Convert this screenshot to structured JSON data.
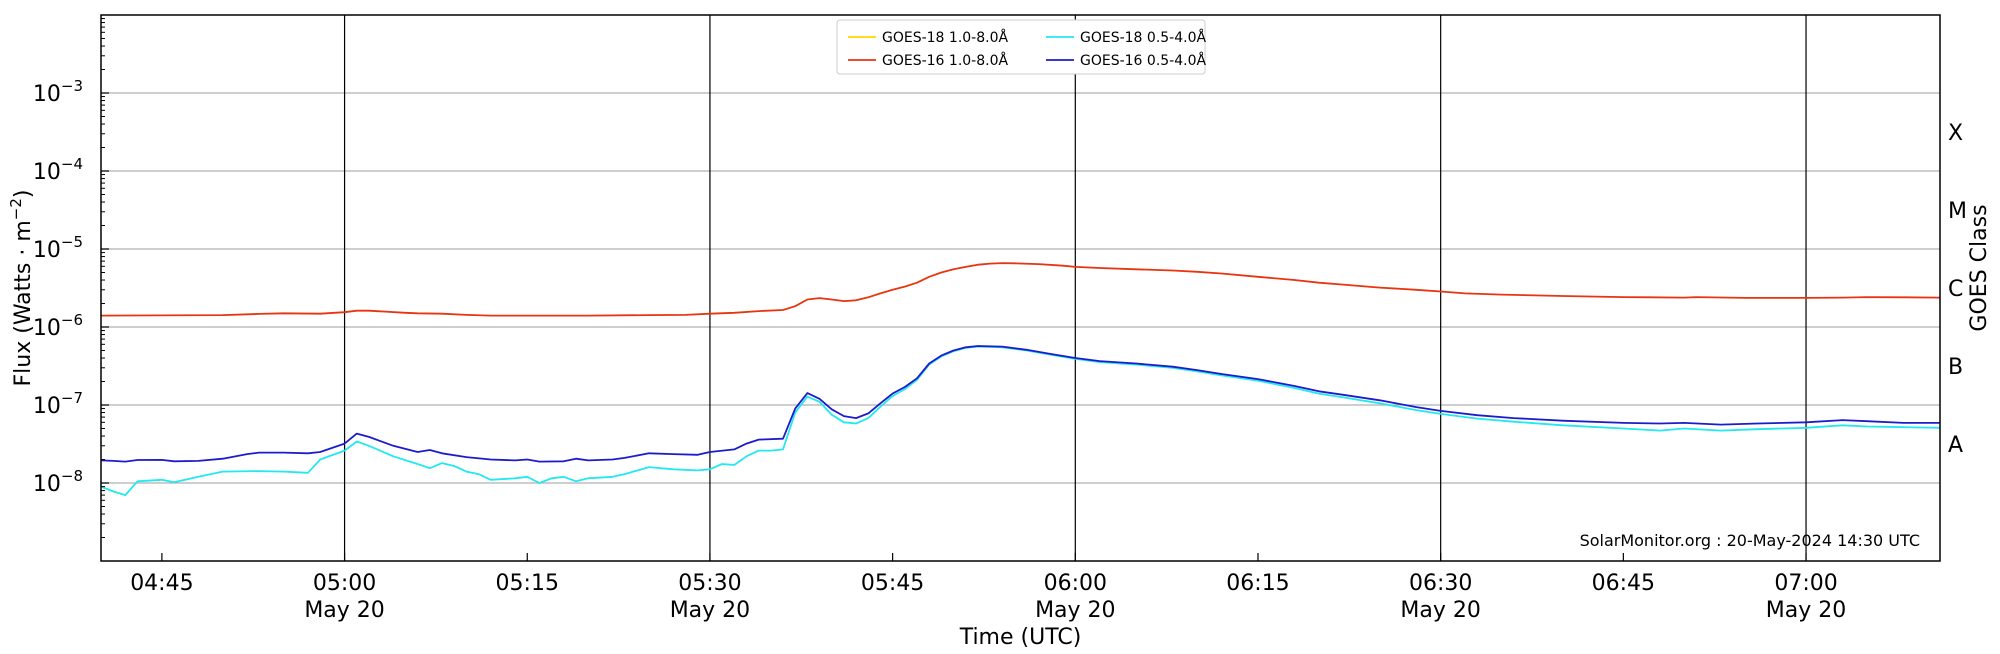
{
  "chart_data": {
    "type": "line",
    "ylabel_prefix": "Flux (Watts · m",
    "ylabel_exponent": "−2",
    "ylabel_suffix": ")",
    "xlabel": "Time (UTC)",
    "y2label": "GOES Class",
    "credit": "SolarMonitor.org : 20-May-2024 14:30 UTC",
    "yscale": "log",
    "ylim": [
      1e-09,
      0.01
    ],
    "xlim": [
      "04:40",
      "07:11"
    ],
    "grid": "horizontal at decades 1e-8 to 1e-3; vertical at half-hours",
    "legend_position": "top-center",
    "y_ticks": [
      {
        "value": 1e-08,
        "base": "10",
        "exp": "−8"
      },
      {
        "value": 1e-07,
        "base": "10",
        "exp": "−7"
      },
      {
        "value": 1e-06,
        "base": "10",
        "exp": "−6"
      },
      {
        "value": 1e-05,
        "base": "10",
        "exp": "−5"
      },
      {
        "value": 0.0001,
        "base": "10",
        "exp": "−4"
      },
      {
        "value": 0.001,
        "base": "10",
        "exp": "−3"
      }
    ],
    "x_ticks": [
      {
        "time": "04:45",
        "label": "04:45",
        "date": ""
      },
      {
        "time": "05:00",
        "label": "05:00",
        "date": "May 20"
      },
      {
        "time": "05:15",
        "label": "05:15",
        "date": ""
      },
      {
        "time": "05:30",
        "label": "05:30",
        "date": "May 20"
      },
      {
        "time": "05:45",
        "label": "05:45",
        "date": ""
      },
      {
        "time": "06:00",
        "label": "06:00",
        "date": "May 20"
      },
      {
        "time": "06:15",
        "label": "06:15",
        "date": ""
      },
      {
        "time": "06:30",
        "label": "06:30",
        "date": "May 20"
      },
      {
        "time": "06:45",
        "label": "06:45",
        "date": ""
      },
      {
        "time": "07:00",
        "label": "07:00",
        "date": "May 20"
      }
    ],
    "goes_classes": [
      {
        "label": "A",
        "level": 3.16e-08
      },
      {
        "label": "B",
        "level": 3.16e-07
      },
      {
        "label": "C",
        "level": 3.16e-06
      },
      {
        "label": "M",
        "level": 3.16e-05
      },
      {
        "label": "X",
        "level": 0.000316
      }
    ],
    "series": [
      {
        "name": "GOES-18 1.0-8.0Å",
        "color": "#ffd700",
        "points": []
      },
      {
        "name": "GOES-16 1.0-8.0Å",
        "color": "#e8340f",
        "points": [
          [
            "04:40",
            1.4e-06
          ],
          [
            "04:50",
            1.42e-06
          ],
          [
            "04:53",
            1.47e-06
          ],
          [
            "04:55",
            1.5e-06
          ],
          [
            "04:58",
            1.48e-06
          ],
          [
            "05:00",
            1.55e-06
          ],
          [
            "05:01",
            1.62e-06
          ],
          [
            "05:02",
            1.62e-06
          ],
          [
            "05:05",
            1.52e-06
          ],
          [
            "05:06",
            1.5e-06
          ],
          [
            "05:08",
            1.48e-06
          ],
          [
            "05:10",
            1.43e-06
          ],
          [
            "05:12",
            1.4e-06
          ],
          [
            "05:20",
            1.4e-06
          ],
          [
            "05:25",
            1.42e-06
          ],
          [
            "05:28",
            1.43e-06
          ],
          [
            "05:30",
            1.48e-06
          ],
          [
            "05:32",
            1.52e-06
          ],
          [
            "05:34",
            1.6e-06
          ],
          [
            "05:36",
            1.65e-06
          ],
          [
            "05:37",
            1.85e-06
          ],
          [
            "05:38",
            2.25e-06
          ],
          [
            "05:39",
            2.35e-06
          ],
          [
            "05:40",
            2.25e-06
          ],
          [
            "05:41",
            2.15e-06
          ],
          [
            "05:42",
            2.2e-06
          ],
          [
            "05:43",
            2.4e-06
          ],
          [
            "05:44",
            2.7e-06
          ],
          [
            "05:45",
            3e-06
          ],
          [
            "05:46",
            3.3e-06
          ],
          [
            "05:47",
            3.7e-06
          ],
          [
            "05:48",
            4.4e-06
          ],
          [
            "05:49",
            5e-06
          ],
          [
            "05:50",
            5.5e-06
          ],
          [
            "05:51",
            5.9e-06
          ],
          [
            "05:52",
            6.3e-06
          ],
          [
            "05:53",
            6.5e-06
          ],
          [
            "05:54",
            6.6e-06
          ],
          [
            "05:55",
            6.55e-06
          ],
          [
            "05:57",
            6.4e-06
          ],
          [
            "05:59",
            6.1e-06
          ],
          [
            "06:00",
            5.9e-06
          ],
          [
            "06:02",
            5.7e-06
          ],
          [
            "06:05",
            5.5e-06
          ],
          [
            "06:08",
            5.3e-06
          ],
          [
            "06:10",
            5.1e-06
          ],
          [
            "06:12",
            4.85e-06
          ],
          [
            "06:15",
            4.4e-06
          ],
          [
            "06:18",
            4e-06
          ],
          [
            "06:20",
            3.7e-06
          ],
          [
            "06:22",
            3.5e-06
          ],
          [
            "06:25",
            3.2e-06
          ],
          [
            "06:28",
            3e-06
          ],
          [
            "06:30",
            2.85e-06
          ],
          [
            "06:32",
            2.7e-06
          ],
          [
            "06:35",
            2.6e-06
          ],
          [
            "06:40",
            2.5e-06
          ],
          [
            "06:45",
            2.42e-06
          ],
          [
            "06:50",
            2.38e-06
          ],
          [
            "06:51",
            2.42e-06
          ],
          [
            "06:55",
            2.36e-06
          ],
          [
            "07:00",
            2.36e-06
          ],
          [
            "07:03",
            2.38e-06
          ],
          [
            "07:05",
            2.42e-06
          ],
          [
            "07:08",
            2.4e-06
          ],
          [
            "07:11",
            2.38e-06
          ]
        ]
      },
      {
        "name": "GOES-18 0.5-4.0Å",
        "color": "#22e8f0",
        "points": [
          [
            "04:40",
            9e-09
          ],
          [
            "04:41",
            7.8e-09
          ],
          [
            "04:42",
            7e-09
          ],
          [
            "04:43",
            1.05e-08
          ],
          [
            "04:45",
            1.1e-08
          ],
          [
            "04:46",
            1.02e-08
          ],
          [
            "04:48",
            1.2e-08
          ],
          [
            "04:50",
            1.4e-08
          ],
          [
            "04:53",
            1.42e-08
          ],
          [
            "04:55",
            1.4e-08
          ],
          [
            "04:57",
            1.35e-08
          ],
          [
            "04:58",
            2e-08
          ],
          [
            "05:00",
            2.6e-08
          ],
          [
            "05:01",
            3.4e-08
          ],
          [
            "05:02",
            3e-08
          ],
          [
            "05:04",
            2.2e-08
          ],
          [
            "05:06",
            1.75e-08
          ],
          [
            "05:07",
            1.55e-08
          ],
          [
            "05:08",
            1.8e-08
          ],
          [
            "05:09",
            1.65e-08
          ],
          [
            "05:10",
            1.4e-08
          ],
          [
            "05:11",
            1.3e-08
          ],
          [
            "05:12",
            1.1e-08
          ],
          [
            "05:14",
            1.15e-08
          ],
          [
            "05:15",
            1.2e-08
          ],
          [
            "05:16",
            1e-08
          ],
          [
            "05:17",
            1.15e-08
          ],
          [
            "05:18",
            1.2e-08
          ],
          [
            "05:19",
            1.05e-08
          ],
          [
            "05:20",
            1.15e-08
          ],
          [
            "05:22",
            1.2e-08
          ],
          [
            "05:23",
            1.3e-08
          ],
          [
            "05:25",
            1.6e-08
          ],
          [
            "05:27",
            1.5e-08
          ],
          [
            "05:29",
            1.45e-08
          ],
          [
            "05:30",
            1.5e-08
          ],
          [
            "05:31",
            1.75e-08
          ],
          [
            "05:32",
            1.7e-08
          ],
          [
            "05:33",
            2.2e-08
          ],
          [
            "05:34",
            2.6e-08
          ],
          [
            "05:35",
            2.6e-08
          ],
          [
            "05:36",
            2.7e-08
          ],
          [
            "05:37",
            8e-08
          ],
          [
            "05:38",
            1.28e-07
          ],
          [
            "05:39",
            1.1e-07
          ],
          [
            "05:40",
            7.5e-08
          ],
          [
            "05:41",
            6e-08
          ],
          [
            "05:42",
            5.8e-08
          ],
          [
            "05:43",
            6.8e-08
          ],
          [
            "05:44",
            9.5e-08
          ],
          [
            "05:45",
            1.3e-07
          ],
          [
            "05:46",
            1.6e-07
          ],
          [
            "05:47",
            2.1e-07
          ],
          [
            "05:48",
            3.3e-07
          ],
          [
            "05:49",
            4.2e-07
          ],
          [
            "05:50",
            4.9e-07
          ],
          [
            "05:51",
            5.4e-07
          ],
          [
            "05:52",
            5.6e-07
          ],
          [
            "05:54",
            5.5e-07
          ],
          [
            "05:56",
            5e-07
          ],
          [
            "05:58",
            4.4e-07
          ],
          [
            "06:00",
            3.9e-07
          ],
          [
            "06:02",
            3.55e-07
          ],
          [
            "06:05",
            3.3e-07
          ],
          [
            "06:08",
            3e-07
          ],
          [
            "06:10",
            2.7e-07
          ],
          [
            "06:12",
            2.4e-07
          ],
          [
            "06:15",
            2.05e-07
          ],
          [
            "06:18",
            1.65e-07
          ],
          [
            "06:20",
            1.4e-07
          ],
          [
            "06:22",
            1.25e-07
          ],
          [
            "06:25",
            1.05e-07
          ],
          [
            "06:28",
            8.6e-08
          ],
          [
            "06:30",
            7.7e-08
          ],
          [
            "06:33",
            6.7e-08
          ],
          [
            "06:36",
            6.1e-08
          ],
          [
            "06:40",
            5.5e-08
          ],
          [
            "06:45",
            5e-08
          ],
          [
            "06:48",
            4.7e-08
          ],
          [
            "06:50",
            5e-08
          ],
          [
            "06:53",
            4.7e-08
          ],
          [
            "06:56",
            4.9e-08
          ],
          [
            "07:00",
            5.1e-08
          ],
          [
            "07:03",
            5.5e-08
          ],
          [
            "07:05",
            5.3e-08
          ],
          [
            "07:08",
            5.2e-08
          ],
          [
            "07:11",
            5.1e-08
          ]
        ]
      },
      {
        "name": "GOES-16 0.5-4.0Å",
        "color": "#1c1ccc",
        "points": [
          [
            "04:40",
            1.95e-08
          ],
          [
            "04:41",
            1.92e-08
          ],
          [
            "04:42",
            1.88e-08
          ],
          [
            "04:43",
            1.97e-08
          ],
          [
            "04:45",
            1.98e-08
          ],
          [
            "04:46",
            1.9e-08
          ],
          [
            "04:48",
            1.92e-08
          ],
          [
            "04:50",
            2.05e-08
          ],
          [
            "04:52",
            2.35e-08
          ],
          [
            "04:53",
            2.45e-08
          ],
          [
            "04:55",
            2.45e-08
          ],
          [
            "04:57",
            2.4e-08
          ],
          [
            "04:58",
            2.5e-08
          ],
          [
            "05:00",
            3.2e-08
          ],
          [
            "05:01",
            4.3e-08
          ],
          [
            "05:02",
            3.9e-08
          ],
          [
            "05:04",
            3e-08
          ],
          [
            "05:06",
            2.5e-08
          ],
          [
            "05:07",
            2.65e-08
          ],
          [
            "05:08",
            2.4e-08
          ],
          [
            "05:10",
            2.15e-08
          ],
          [
            "05:12",
            2e-08
          ],
          [
            "05:14",
            1.95e-08
          ],
          [
            "05:15",
            2e-08
          ],
          [
            "05:16",
            1.88e-08
          ],
          [
            "05:18",
            1.9e-08
          ],
          [
            "05:19",
            2.05e-08
          ],
          [
            "05:20",
            1.95e-08
          ],
          [
            "05:22",
            2e-08
          ],
          [
            "05:23",
            2.1e-08
          ],
          [
            "05:25",
            2.4e-08
          ],
          [
            "05:27",
            2.35e-08
          ],
          [
            "05:29",
            2.3e-08
          ],
          [
            "05:30",
            2.5e-08
          ],
          [
            "05:32",
            2.7e-08
          ],
          [
            "05:33",
            3.2e-08
          ],
          [
            "05:34",
            3.6e-08
          ],
          [
            "05:36",
            3.7e-08
          ],
          [
            "05:37",
            9e-08
          ],
          [
            "05:38",
            1.42e-07
          ],
          [
            "05:39",
            1.2e-07
          ],
          [
            "05:40",
            8.8e-08
          ],
          [
            "05:41",
            7.2e-08
          ],
          [
            "05:42",
            6.8e-08
          ],
          [
            "05:43",
            7.8e-08
          ],
          [
            "05:44",
            1.05e-07
          ],
          [
            "05:45",
            1.4e-07
          ],
          [
            "05:46",
            1.7e-07
          ],
          [
            "05:47",
            2.2e-07
          ],
          [
            "05:48",
            3.4e-07
          ],
          [
            "05:49",
            4.3e-07
          ],
          [
            "05:50",
            5e-07
          ],
          [
            "05:51",
            5.5e-07
          ],
          [
            "05:52",
            5.7e-07
          ],
          [
            "05:54",
            5.6e-07
          ],
          [
            "05:56",
            5.1e-07
          ],
          [
            "05:58",
            4.5e-07
          ],
          [
            "06:00",
            4e-07
          ],
          [
            "06:02",
            3.65e-07
          ],
          [
            "06:05",
            3.4e-07
          ],
          [
            "06:08",
            3.1e-07
          ],
          [
            "06:10",
            2.8e-07
          ],
          [
            "06:12",
            2.5e-07
          ],
          [
            "06:15",
            2.15e-07
          ],
          [
            "06:18",
            1.75e-07
          ],
          [
            "06:20",
            1.5e-07
          ],
          [
            "06:22",
            1.35e-07
          ],
          [
            "06:25",
            1.15e-07
          ],
          [
            "06:28",
            9.4e-08
          ],
          [
            "06:30",
            8.4e-08
          ],
          [
            "06:33",
            7.4e-08
          ],
          [
            "06:36",
            6.8e-08
          ],
          [
            "06:40",
            6.3e-08
          ],
          [
            "06:45",
            5.9e-08
          ],
          [
            "06:48",
            5.8e-08
          ],
          [
            "06:50",
            5.9e-08
          ],
          [
            "06:53",
            5.6e-08
          ],
          [
            "06:56",
            5.8e-08
          ],
          [
            "07:00",
            6e-08
          ],
          [
            "07:03",
            6.4e-08
          ],
          [
            "07:05",
            6.2e-08
          ],
          [
            "07:08",
            5.9e-08
          ],
          [
            "07:11",
            5.9e-08
          ]
        ]
      }
    ]
  }
}
